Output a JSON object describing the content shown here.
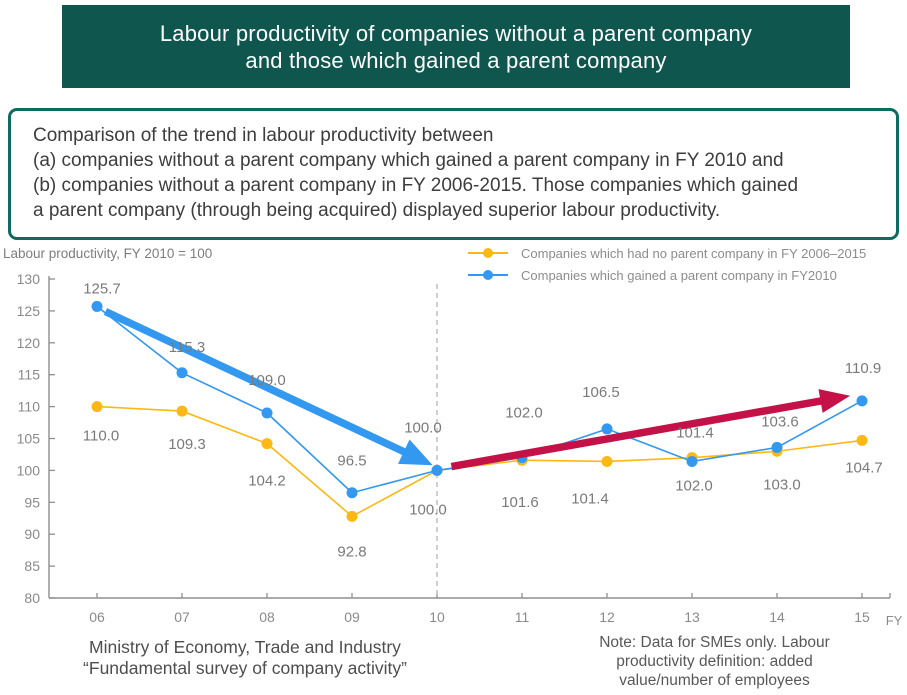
{
  "header": {
    "title_line1": "Labour productivity of companies without a parent company",
    "title_line2": "and those which gained a parent company"
  },
  "description": {
    "lines": [
      "Comparison of the trend in labour productivity between",
      "(a) companies without a parent company which gained a parent company in FY 2010 and",
      "(b) companies without a parent company in FY 2006-2015. Those companies which gained",
      "a parent company (through being acquired) displayed superior labour productivity."
    ]
  },
  "chart_data": {
    "type": "line",
    "axis_title": "Labour productivity, FY 2010 = 100",
    "x_axis_unit": "FY",
    "categories": [
      "06",
      "07",
      "08",
      "09",
      "10",
      "11",
      "12",
      "13",
      "14",
      "15"
    ],
    "ylim": [
      80,
      130
    ],
    "ytick_step": 5,
    "grid": false,
    "legend_position": "top-right",
    "axis_color": "#8f8f8f",
    "tick_label_color": "#8a8a8a",
    "value_label_color": "#7a7a7a",
    "dashed_line_color": "#b5b5b5",
    "series": [
      {
        "name": "Companies which had no parent company in FY 2006–2015",
        "color": "#fdb813",
        "values": [
          110.0,
          109.3,
          104.2,
          92.8,
          100.0,
          101.6,
          101.4,
          102.0,
          103.0,
          104.7
        ],
        "label_dx": [
          4,
          5,
          0,
          0,
          -9,
          -2,
          -17,
          2,
          5,
          2
        ],
        "label_dy": [
          34,
          38,
          42,
          40,
          44,
          47,
          42,
          33,
          38,
          32
        ]
      },
      {
        "name": "Companies which gained a parent company in FY2010",
        "color": "#3398f0",
        "values": [
          125.7,
          115.3,
          109.0,
          96.5,
          100.0,
          102.0,
          106.5,
          101.4,
          103.6,
          110.9
        ],
        "label_dx": [
          5,
          5,
          0,
          0,
          -14,
          2,
          -6,
          3,
          3,
          1
        ],
        "label_dy": [
          -13,
          -21,
          -28,
          -27,
          -38,
          -40,
          -32,
          -24,
          -21,
          -28
        ]
      }
    ],
    "annotations": {
      "dashed_vline_category": "10",
      "dashed_vline_index": 4,
      "arrows": [
        {
          "name": "decline-arrow",
          "color": "#3398f0",
          "from": [
            0.1,
            124.9
          ],
          "to": [
            3.95,
            100.8
          ],
          "width": 7.5,
          "head_len": 32,
          "head_width": 27
        },
        {
          "name": "growth-arrow",
          "color": "#c41147",
          "from": [
            4.17,
            100.6
          ],
          "to": [
            8.86,
            111.7
          ],
          "width": 7.5,
          "head_len": 30,
          "head_width": 24
        }
      ]
    }
  },
  "footer": {
    "source_line1": "Ministry of Economy, Trade and Industry",
    "source_line2": "“Fundamental survey of company activity”",
    "note_lines": [
      "Note: Data for SMEs only. Labour",
      "productivity definition: added",
      "value/number of employees"
    ]
  }
}
